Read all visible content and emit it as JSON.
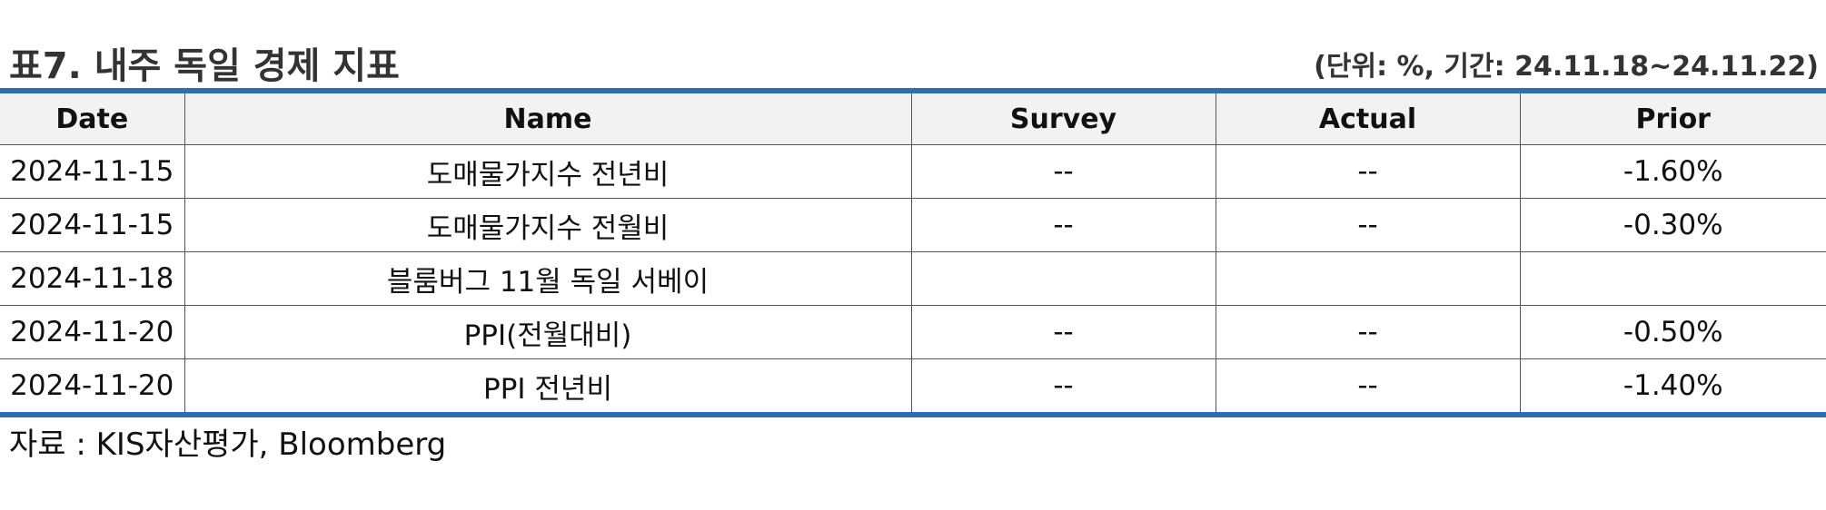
{
  "title": "표7. 내주 독일 경제 지표",
  "unit_note": "(단위: %, 기간: 24.11.18~24.11.22)",
  "columns": [
    "Date",
    "Name",
    "Survey",
    "Actual",
    "Prior"
  ],
  "rows": [
    {
      "date": "2024-11-15",
      "name": "도매물가지수 전년비",
      "survey": "--",
      "actual": "--",
      "prior": "-1.60%"
    },
    {
      "date": "2024-11-15",
      "name": "도매물가지수 전월비",
      "survey": "--",
      "actual": "--",
      "prior": "-0.30%"
    },
    {
      "date": "2024-11-18",
      "name": "블룸버그 11월 독일 서베이",
      "survey": "",
      "actual": "",
      "prior": ""
    },
    {
      "date": "2024-11-20",
      "name": "PPI(전월대비)",
      "survey": "--",
      "actual": "--",
      "prior": "-0.50%"
    },
    {
      "date": "2024-11-20",
      "name": "PPI 전년비",
      "survey": "--",
      "actual": "--",
      "prior": "-1.40%"
    }
  ],
  "source": "자료 : KIS자산평가, Bloomberg",
  "colors": {
    "accent_rule": "#2f6db1",
    "header_bg": "#f2f2f2"
  }
}
